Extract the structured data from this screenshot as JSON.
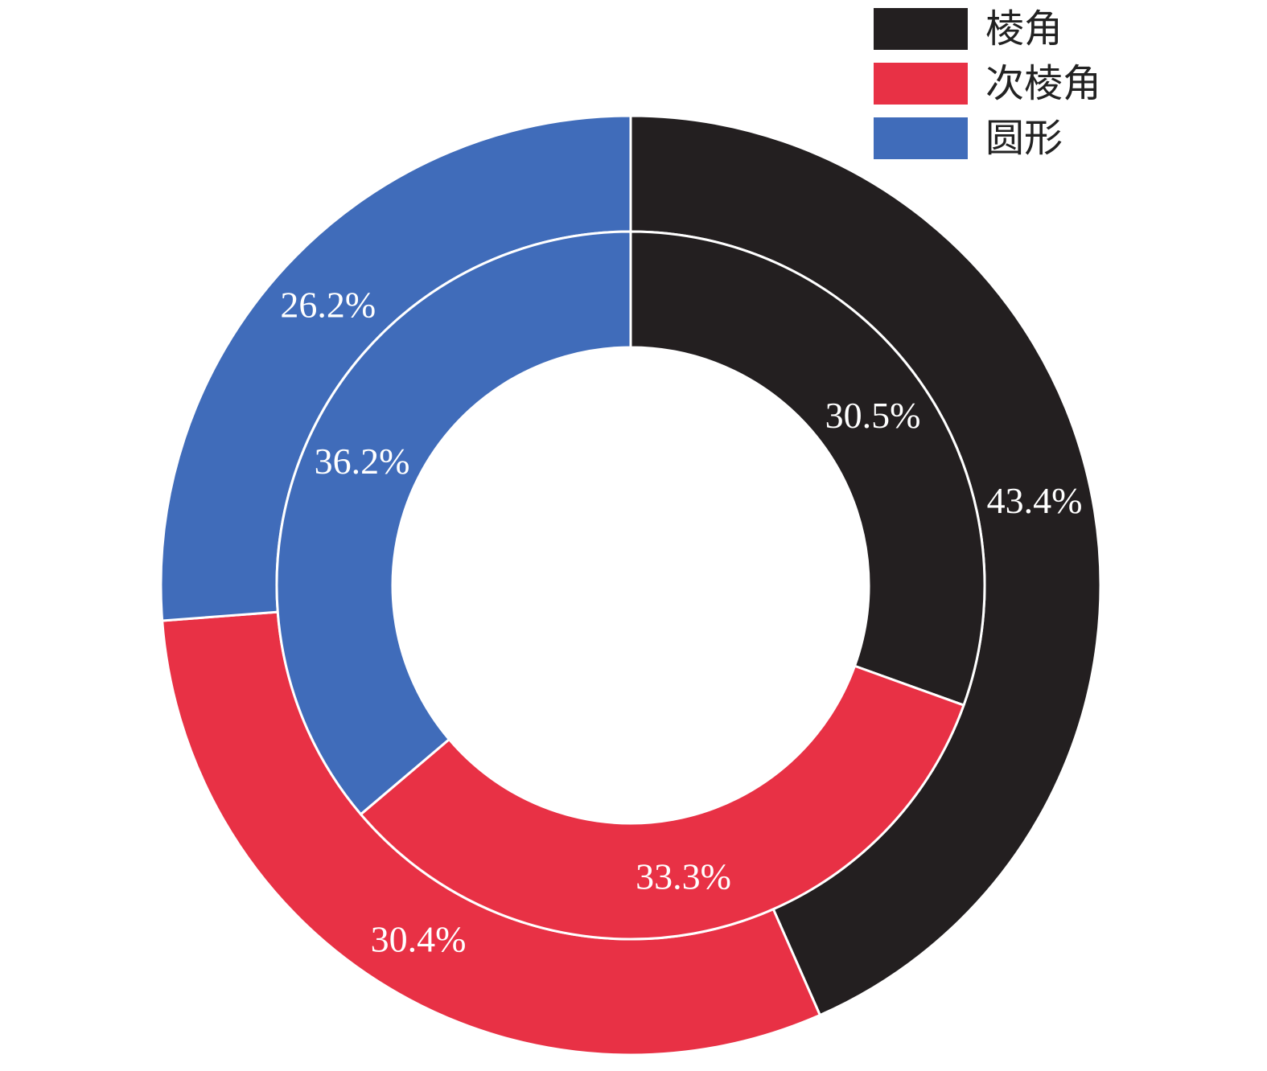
{
  "chart_data": {
    "type": "donut",
    "categories": [
      "棱角",
      "次棱角",
      "圆形"
    ],
    "colors": [
      "#231f20",
      "#e83145",
      "#406cba"
    ],
    "legend_position": "top-right",
    "series": [
      {
        "ring": "outer",
        "values": [
          43.4,
          30.4,
          26.2
        ],
        "labels": [
          "43.4%",
          "30.4%",
          "26.2%"
        ]
      },
      {
        "ring": "inner",
        "values": [
          30.5,
          33.3,
          36.2
        ],
        "labels": [
          "30.5%",
          "33.3%",
          "36.2%"
        ]
      }
    ]
  }
}
